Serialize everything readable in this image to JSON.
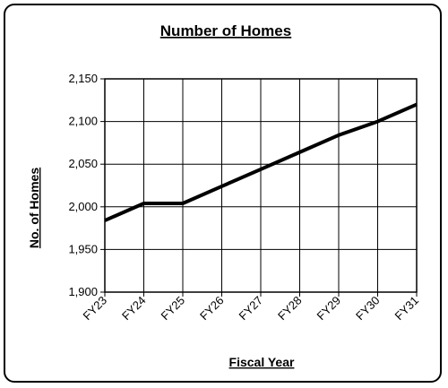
{
  "chart_data": {
    "type": "line",
    "title": "Number of Homes",
    "xlabel": "Fiscal Year",
    "ylabel": "No. of Homes",
    "categories": [
      "FY23",
      "FY24",
      "FY25",
      "FY26",
      "FY27",
      "FY28",
      "FY29",
      "FY30",
      "FY31"
    ],
    "series": [
      {
        "values": [
          1984,
          2004,
          2004,
          2024,
          2044,
          2064,
          2084,
          2100,
          2120
        ]
      }
    ],
    "ylim": [
      1900,
      2150
    ],
    "yticks": [
      1900,
      1950,
      2000,
      2050,
      2100,
      2150
    ],
    "ytick_labels": [
      "1,900",
      "1,950",
      "2,000",
      "2,050",
      "2,100",
      "2,150"
    ],
    "grid": true,
    "legend": "none",
    "line_color": "#000000"
  }
}
